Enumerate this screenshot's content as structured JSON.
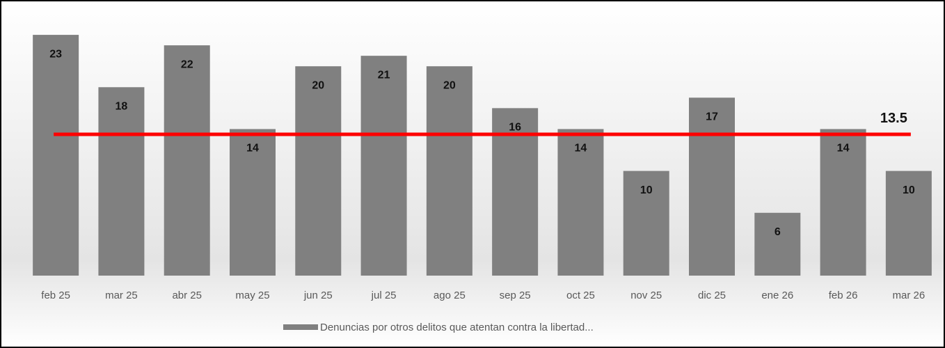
{
  "chart_data": {
    "type": "bar",
    "categories": [
      "feb 25",
      "mar 25",
      "abr 25",
      "may 25",
      "jun 25",
      "jul 25",
      "ago 25",
      "sep 25",
      "oct 25",
      "nov 25",
      "dic 25",
      "ene 26",
      "feb 26",
      "mar 26"
    ],
    "series": [
      {
        "name": "Denuncias por otros delitos que atentan contra la libertad...",
        "color": "#808080",
        "values": [
          23,
          18,
          22,
          14,
          20,
          21,
          20,
          16,
          14,
          10,
          17,
          6,
          14,
          10
        ]
      }
    ],
    "average": {
      "value": 13.5,
      "label": "13.5",
      "color": "#ff0000"
    },
    "ylim": [
      0,
      25
    ],
    "legend": "bottom"
  }
}
